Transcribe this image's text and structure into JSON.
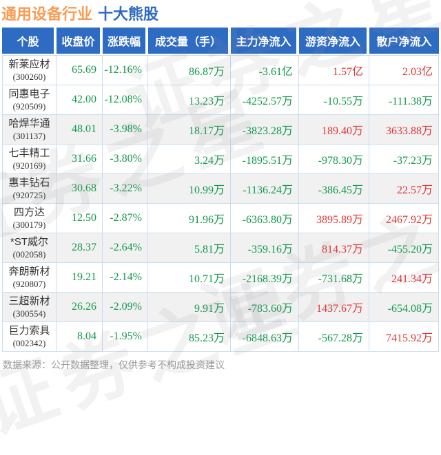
{
  "header": {
    "title_industry": "通用设备行业",
    "title_rest": "十大熊股"
  },
  "watermark": {
    "text": "证券之星"
  },
  "colors": {
    "header_bg": "#2e6bc2",
    "title_industry": "#f99b52",
    "title_rest": "#2f6ac0",
    "down_green": "#12994d",
    "up_red": "#e23434",
    "stripe_gray": "#f1f1f1",
    "grid_line": "#c9ddf0"
  },
  "chart_data": {
    "type": "table",
    "title": "通用设备行业 十大熊股",
    "columns": [
      "个股",
      "收盘价",
      "涨跌幅",
      "成交量（手）",
      "主力净流入",
      "游资净流入",
      "散户净流入"
    ],
    "rows": [
      {
        "name": "新莱应材",
        "code": "(300260)",
        "close": {
          "v": "65.69",
          "c": "green"
        },
        "change": {
          "v": "-12.16%",
          "c": "green"
        },
        "volume": {
          "v": "86.87万",
          "c": "green"
        },
        "main": {
          "v": "-3.61亿",
          "c": "green"
        },
        "hot": {
          "v": "1.57亿",
          "c": "red"
        },
        "retail": {
          "v": "2.03亿",
          "c": "red"
        }
      },
      {
        "name": "同惠电子",
        "code": "(920509)",
        "close": {
          "v": "42.00",
          "c": "green"
        },
        "change": {
          "v": "-12.08%",
          "c": "green"
        },
        "volume": {
          "v": "13.23万",
          "c": "green"
        },
        "main": {
          "v": "-4252.57万",
          "c": "green"
        },
        "hot": {
          "v": "-10.55万",
          "c": "green"
        },
        "retail": {
          "v": "-111.38万",
          "c": "green"
        }
      },
      {
        "name": "哈焊华通",
        "code": "(301137)",
        "close": {
          "v": "48.01",
          "c": "green"
        },
        "change": {
          "v": "-3.98%",
          "c": "green"
        },
        "volume": {
          "v": "18.17万",
          "c": "green"
        },
        "main": {
          "v": "-3823.28万",
          "c": "green"
        },
        "hot": {
          "v": "189.40万",
          "c": "red"
        },
        "retail": {
          "v": "3633.88万",
          "c": "red"
        }
      },
      {
        "name": "七丰精工",
        "code": "(920169)",
        "close": {
          "v": "31.66",
          "c": "green"
        },
        "change": {
          "v": "-3.80%",
          "c": "green"
        },
        "volume": {
          "v": "3.24万",
          "c": "green"
        },
        "main": {
          "v": "-1895.51万",
          "c": "green"
        },
        "hot": {
          "v": "-978.30万",
          "c": "green"
        },
        "retail": {
          "v": "-37.23万",
          "c": "green"
        }
      },
      {
        "name": "惠丰钻石",
        "code": "(920725)",
        "close": {
          "v": "30.68",
          "c": "green"
        },
        "change": {
          "v": "-3.22%",
          "c": "green"
        },
        "volume": {
          "v": "10.99万",
          "c": "green"
        },
        "main": {
          "v": "-1136.24万",
          "c": "green"
        },
        "hot": {
          "v": "-386.45万",
          "c": "green"
        },
        "retail": {
          "v": "22.57万",
          "c": "red"
        }
      },
      {
        "name": "四方达",
        "code": "(300179)",
        "close": {
          "v": "12.50",
          "c": "green"
        },
        "change": {
          "v": "-2.87%",
          "c": "green"
        },
        "volume": {
          "v": "91.96万",
          "c": "green"
        },
        "main": {
          "v": "-6363.80万",
          "c": "green"
        },
        "hot": {
          "v": "3895.89万",
          "c": "red"
        },
        "retail": {
          "v": "2467.92万",
          "c": "red"
        }
      },
      {
        "name": "*ST威尔",
        "code": "(002058)",
        "close": {
          "v": "28.37",
          "c": "green"
        },
        "change": {
          "v": "-2.64%",
          "c": "green"
        },
        "volume": {
          "v": "5.81万",
          "c": "green"
        },
        "main": {
          "v": "-359.16万",
          "c": "green"
        },
        "hot": {
          "v": "814.37万",
          "c": "red"
        },
        "retail": {
          "v": "-455.20万",
          "c": "green"
        }
      },
      {
        "name": "奔朗新材",
        "code": "(920807)",
        "close": {
          "v": "19.21",
          "c": "green"
        },
        "change": {
          "v": "-2.14%",
          "c": "green"
        },
        "volume": {
          "v": "10.71万",
          "c": "green"
        },
        "main": {
          "v": "-2168.39万",
          "c": "green"
        },
        "hot": {
          "v": "-731.68万",
          "c": "green"
        },
        "retail": {
          "v": "241.34万",
          "c": "red"
        }
      },
      {
        "name": "三超新材",
        "code": "(300554)",
        "close": {
          "v": "26.26",
          "c": "green"
        },
        "change": {
          "v": "-2.09%",
          "c": "green"
        },
        "volume": {
          "v": "9.91万",
          "c": "green"
        },
        "main": {
          "v": "-783.60万",
          "c": "green"
        },
        "hot": {
          "v": "1437.67万",
          "c": "red"
        },
        "retail": {
          "v": "-654.08万",
          "c": "green"
        }
      },
      {
        "name": "巨力索具",
        "code": "(002342)",
        "close": {
          "v": "8.04",
          "c": "green"
        },
        "change": {
          "v": "-1.95%",
          "c": "green"
        },
        "volume": {
          "v": "85.23万",
          "c": "green"
        },
        "main": {
          "v": "-6848.63万",
          "c": "green"
        },
        "hot": {
          "v": "-567.28万",
          "c": "green"
        },
        "retail": {
          "v": "7415.92万",
          "c": "red"
        }
      }
    ]
  },
  "footer": {
    "text": "数据来源：公开数据整理，仅供参考不构成投资建议"
  }
}
